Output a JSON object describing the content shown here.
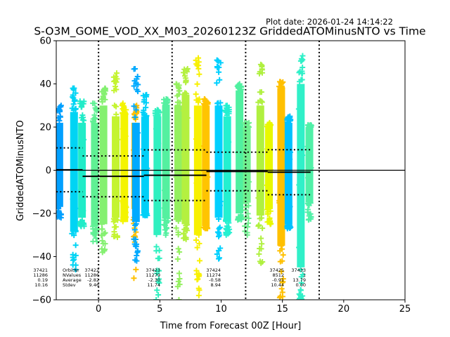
{
  "chart_data": {
    "type": "scatter",
    "title": "S-O3M_GOME_VOD_XX_M03_20260123Z GriddedATOMinusNTO vs Time",
    "subtitle": "Plot date: 2026-01-24 14:14:22",
    "xlabel": "Time from Forecast 00Z [Hour]",
    "ylabel": "GriddedATOMinusNTO",
    "xlim": [
      -3.45,
      25
    ],
    "ylim": [
      -60,
      60
    ],
    "xticks": [
      0,
      5,
      10,
      15,
      20,
      25
    ],
    "yticks": [
      -60,
      -40,
      -20,
      0,
      20,
      40,
      60
    ],
    "marker": "+",
    "grid": false,
    "vertical_dotted_lines_x": [
      0,
      6,
      12,
      18
    ],
    "zero_line_y": 0,
    "scatter_strips": [
      {
        "x": -3.2,
        "color": "#00a0ff",
        "core": [
          -17,
          22
        ],
        "extremes": [
          -22,
          30
        ]
      },
      {
        "x": -2.0,
        "color": "#00d4f4",
        "core": [
          -28,
          27
        ],
        "extremes": [
          -46,
          38
        ]
      },
      {
        "x": -1.35,
        "color": "#20ecc8",
        "core": [
          -22,
          22
        ],
        "extremes": [
          -26,
          32
        ]
      },
      {
        "x": -0.3,
        "color": "#60f094",
        "core": [
          -26,
          22
        ],
        "extremes": [
          -33,
          31
        ]
      },
      {
        "x": 0.4,
        "color": "#84f070",
        "core": [
          -25,
          30
        ],
        "extremes": [
          -38,
          38
        ]
      },
      {
        "x": 1.4,
        "color": "#c4f430",
        "core": [
          -22,
          25
        ],
        "extremes": [
          -31,
          45
        ]
      },
      {
        "x": 2.1,
        "color": "#f4f400",
        "core": [
          -24,
          26
        ],
        "extremes": [
          -15,
          31
        ]
      },
      {
        "x": 3.0,
        "color": "#ffc000",
        "core": [
          -18,
          22
        ],
        "extremes": [
          -50,
          30
        ]
      },
      {
        "x": 3.05,
        "color": "#00aaff",
        "core": [
          -24,
          22
        ],
        "extremes": [
          -42,
          47
        ]
      },
      {
        "x": 3.8,
        "color": "#00d0f8",
        "core": [
          -20,
          25
        ],
        "extremes": [
          -21,
          35
        ]
      },
      {
        "x": 4.8,
        "color": "#30f0c0",
        "core": [
          -30,
          25
        ],
        "extremes": [
          -60,
          28
        ]
      },
      {
        "x": 5.5,
        "color": "#54f0a0",
        "core": [
          -22,
          30
        ],
        "extremes": [
          -30,
          33
        ]
      },
      {
        "x": 6.5,
        "color": "#94f060",
        "core": [
          -23,
          30
        ],
        "extremes": [
          -60,
          40
        ]
      },
      {
        "x": 7.1,
        "color": "#b4f040",
        "core": [
          -25,
          35
        ],
        "extremes": [
          -32,
          47
        ]
      },
      {
        "x": 8.1,
        "color": "#f8f000",
        "core": [
          -30,
          30
        ],
        "extremes": [
          -58,
          52
        ]
      },
      {
        "x": 8.75,
        "color": "#ffc400",
        "core": [
          -26,
          30
        ],
        "extremes": [
          -27,
          33
        ]
      },
      {
        "x": 9.8,
        "color": "#00d0ff",
        "core": [
          -22,
          30
        ],
        "extremes": [
          -41,
          51
        ]
      },
      {
        "x": 10.5,
        "color": "#24f0d0",
        "core": [
          -24,
          25
        ],
        "extremes": [
          -30,
          30
        ]
      },
      {
        "x": 11.5,
        "color": "#50f0a0",
        "core": [
          -20,
          37
        ],
        "extremes": [
          -23,
          40
        ]
      },
      {
        "x": 12.1,
        "color": "#70f090",
        "core": [
          -15,
          20
        ],
        "extremes": [
          -30,
          22
        ]
      },
      {
        "x": 13.2,
        "color": "#b0f040",
        "core": [
          -21,
          30
        ],
        "extremes": [
          -43,
          49
        ]
      },
      {
        "x": 13.9,
        "color": "#e8f800",
        "core": [
          -18,
          20
        ],
        "extremes": [
          -25,
          22
        ]
      },
      {
        "x": 14.9,
        "color": "#ffc000",
        "core": [
          -35,
          38
        ],
        "extremes": [
          -59,
          41
        ]
      },
      {
        "x": 15.5,
        "color": "#00c0ff",
        "core": [
          -25,
          22
        ],
        "extremes": [
          -27,
          25
        ]
      },
      {
        "x": 16.5,
        "color": "#30f0c8",
        "core": [
          -45,
          40
        ],
        "extremes": [
          -60,
          53
        ]
      },
      {
        "x": 17.2,
        "color": "#50f0a8",
        "core": [
          -15,
          20
        ],
        "extremes": [
          -23,
          21
        ]
      }
    ],
    "orbits": [
      {
        "orbit": "37421",
        "x_start": -3.45,
        "x_end": -1.3,
        "nvalues": "11286",
        "average": "0.19",
        "stdev": "10.16",
        "mean": 0.19,
        "sd": 10.16
      },
      {
        "orbit": "37422",
        "x_start": -1.3,
        "x_end": 3.7,
        "nvalues": "11286",
        "average": "-2.82",
        "stdev": "9.46",
        "mean": -2.82,
        "sd": 9.46
      },
      {
        "orbit": "37423",
        "x_start": 3.7,
        "x_end": 8.8,
        "nvalues": "11279",
        "average": "-2.30",
        "stdev": "11.74",
        "mean": -2.3,
        "sd": 11.74
      },
      {
        "orbit": "37424",
        "x_start": 8.8,
        "x_end": 13.8,
        "nvalues": "11274",
        "average": "-0.58",
        "stdev": "8.94",
        "mean": -0.58,
        "sd": 8.94
      },
      {
        "orbit": "37425",
        "x_start": 13.8,
        "x_end": 17.3,
        "nvalues": "8512",
        "average": "-0.91",
        "stdev": "10.44",
        "mean": -0.91,
        "sd": 10.44
      },
      {
        "orbit": "37433",
        "x_start": 17.3,
        "x_end": 17.3,
        "nvalues": "1",
        "average": "13.79",
        "stdev": "0.00",
        "mean": 13.79,
        "sd": 0.0
      }
    ],
    "stat_labels": {
      "row_names": [
        "OrbitNr",
        "NValues",
        "Average",
        "Stdev"
      ]
    }
  }
}
